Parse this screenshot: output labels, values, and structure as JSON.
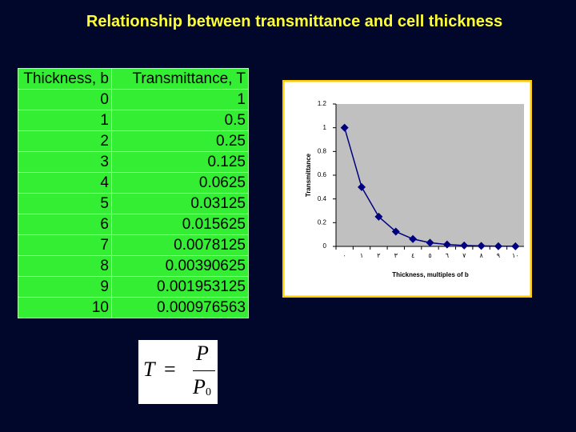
{
  "title": "Relationship between transmittance and cell thickness",
  "table": {
    "header": [
      "Thickness, b",
      "Transmittance, T"
    ],
    "rows": [
      [
        "0",
        "1"
      ],
      [
        "1",
        "0.5"
      ],
      [
        "2",
        "0.25"
      ],
      [
        "3",
        "0.125"
      ],
      [
        "4",
        "0.0625"
      ],
      [
        "5",
        "0.03125"
      ],
      [
        "6",
        "0.015625"
      ],
      [
        "7",
        "0.0078125"
      ],
      [
        "8",
        "0.00390625"
      ],
      [
        "9",
        "0.001953125"
      ],
      [
        "10",
        "0.000976563"
      ]
    ]
  },
  "chart_data": {
    "type": "line",
    "x_label": "Thickness, multiples of b",
    "y_label": "Transmittance",
    "categories": [
      "٠",
      "١",
      "٢",
      "٣",
      "٤",
      "٥",
      "٦",
      "٧",
      "٨",
      "٩",
      "١٠"
    ],
    "series": [
      {
        "name": "Transmittance",
        "color": "#000080",
        "values": [
          1,
          0.5,
          0.25,
          0.125,
          0.0625,
          0.03125,
          0.015625,
          0.0078125,
          0.00390625,
          0.001953125,
          0.0009765625
        ]
      }
    ],
    "ylim": [
      0,
      1.2
    ],
    "yticks": [
      0,
      0.2,
      0.4,
      0.6,
      0.8,
      1,
      1.2
    ],
    "grid": false
  },
  "formula": {
    "lhs": "T",
    "equals": "=",
    "numerator": "P",
    "denominator": "P",
    "subscript": "0"
  }
}
